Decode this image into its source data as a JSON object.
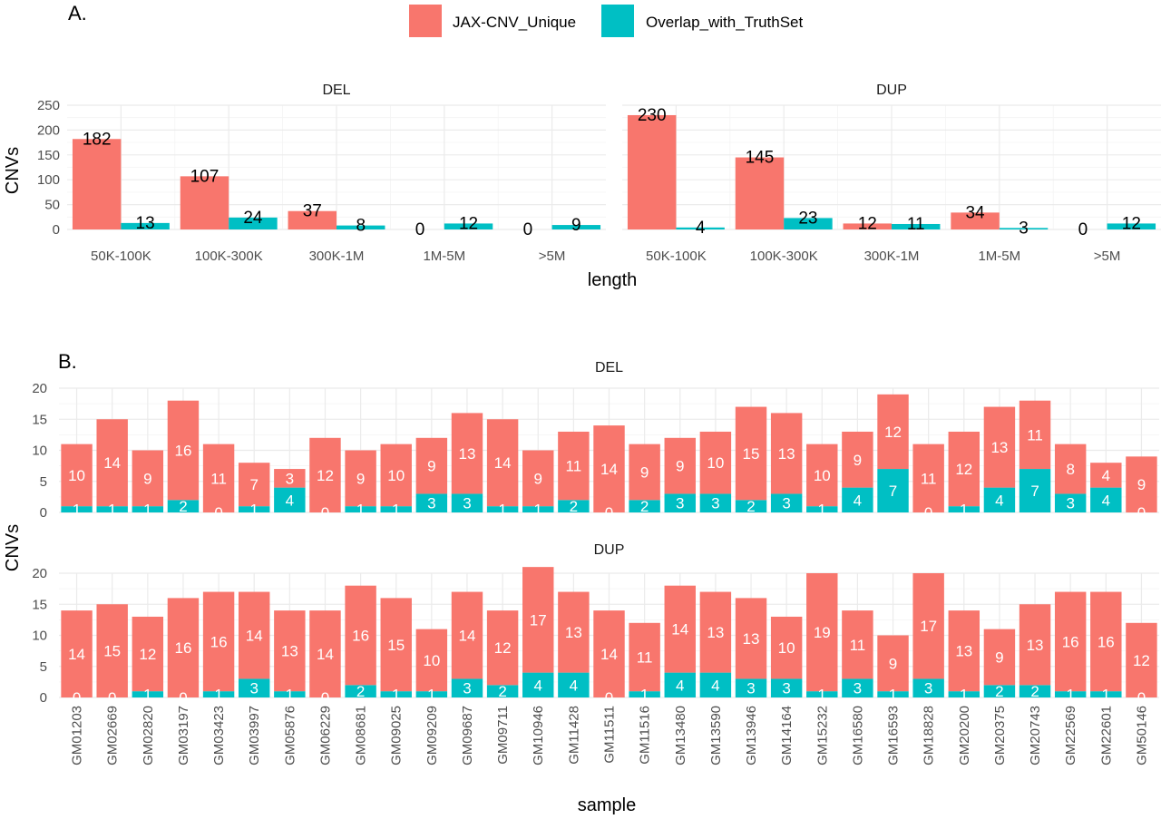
{
  "panel_labels": {
    "a": "A.",
    "b": "B."
  },
  "legend": {
    "unique_label": "JAX-CNV_Unique",
    "overlap_label": "Overlap_with_TruthSet"
  },
  "colors": {
    "unique": "#F8766D",
    "overlap": "#00BFC4"
  },
  "chart_data": [
    {
      "type": "bar",
      "layout": "faceted, dodged",
      "xlabel": "length",
      "ylabel": "CNVs",
      "ylim": [
        0,
        250
      ],
      "yticks": [
        0,
        50,
        100,
        150,
        200,
        250
      ],
      "categories": [
        "50K-100K",
        "100K-300K",
        "300K-1M",
        "1M-5M",
        ">5M"
      ],
      "facets": [
        {
          "name": "DEL",
          "series": [
            {
              "name": "JAX-CNV_Unique",
              "values": [
                182,
                107,
                37,
                0,
                0
              ]
            },
            {
              "name": "Overlap_with_TruthSet",
              "values": [
                13,
                24,
                8,
                12,
                9
              ]
            }
          ]
        },
        {
          "name": "DUP",
          "series": [
            {
              "name": "JAX-CNV_Unique",
              "values": [
                230,
                145,
                12,
                34,
                0
              ]
            },
            {
              "name": "Overlap_with_TruthSet",
              "values": [
                4,
                23,
                11,
                3,
                12
              ]
            }
          ]
        }
      ]
    },
    {
      "type": "bar",
      "layout": "faceted, stacked",
      "xlabel": "sample",
      "ylabel": "CNVs",
      "ylim": [
        0,
        20
      ],
      "yticks": [
        0,
        5,
        10,
        15,
        20
      ],
      "categories": [
        "GM01203",
        "GM02669",
        "GM02820",
        "GM03197",
        "GM03423",
        "GM03997",
        "GM05876",
        "GM06229",
        "GM08681",
        "GM09025",
        "GM09209",
        "GM09687",
        "GM09711",
        "GM10946",
        "GM11428",
        "GM11511",
        "GM11516",
        "GM13480",
        "GM13590",
        "GM13946",
        "GM14164",
        "GM15232",
        "GM16580",
        "GM16593",
        "GM18828",
        "GM20200",
        "GM20375",
        "GM20743",
        "GM22569",
        "GM22601",
        "GM50146"
      ],
      "facets": [
        {
          "name": "DEL",
          "series": [
            {
              "name": "JAX-CNV_Unique",
              "values": [
                10,
                14,
                9,
                16,
                11,
                7,
                3,
                12,
                9,
                10,
                9,
                13,
                14,
                9,
                11,
                14,
                9,
                9,
                10,
                15,
                13,
                10,
                9,
                12,
                11,
                12,
                13,
                11,
                8,
                4,
                9
              ]
            },
            {
              "name": "Overlap_with_TruthSet",
              "values": [
                1,
                1,
                1,
                2,
                0,
                1,
                4,
                0,
                1,
                1,
                3,
                3,
                1,
                1,
                2,
                0,
                2,
                3,
                3,
                2,
                3,
                1,
                4,
                7,
                0,
                1,
                4,
                7,
                3,
                4,
                0
              ]
            }
          ]
        },
        {
          "name": "DUP",
          "series": [
            {
              "name": "JAX-CNV_Unique",
              "values": [
                14,
                15,
                12,
                16,
                16,
                14,
                13,
                14,
                16,
                15,
                10,
                14,
                12,
                17,
                13,
                14,
                11,
                14,
                13,
                13,
                10,
                19,
                11,
                9,
                17,
                13,
                9,
                13,
                16,
                16,
                12
              ]
            },
            {
              "name": "Overlap_with_TruthSet",
              "values": [
                0,
                0,
                1,
                0,
                1,
                3,
                1,
                0,
                2,
                1,
                1,
                3,
                2,
                4,
                4,
                0,
                1,
                4,
                4,
                3,
                3,
                1,
                3,
                1,
                3,
                1,
                2,
                2,
                1,
                1,
                0
              ]
            }
          ]
        }
      ]
    }
  ]
}
